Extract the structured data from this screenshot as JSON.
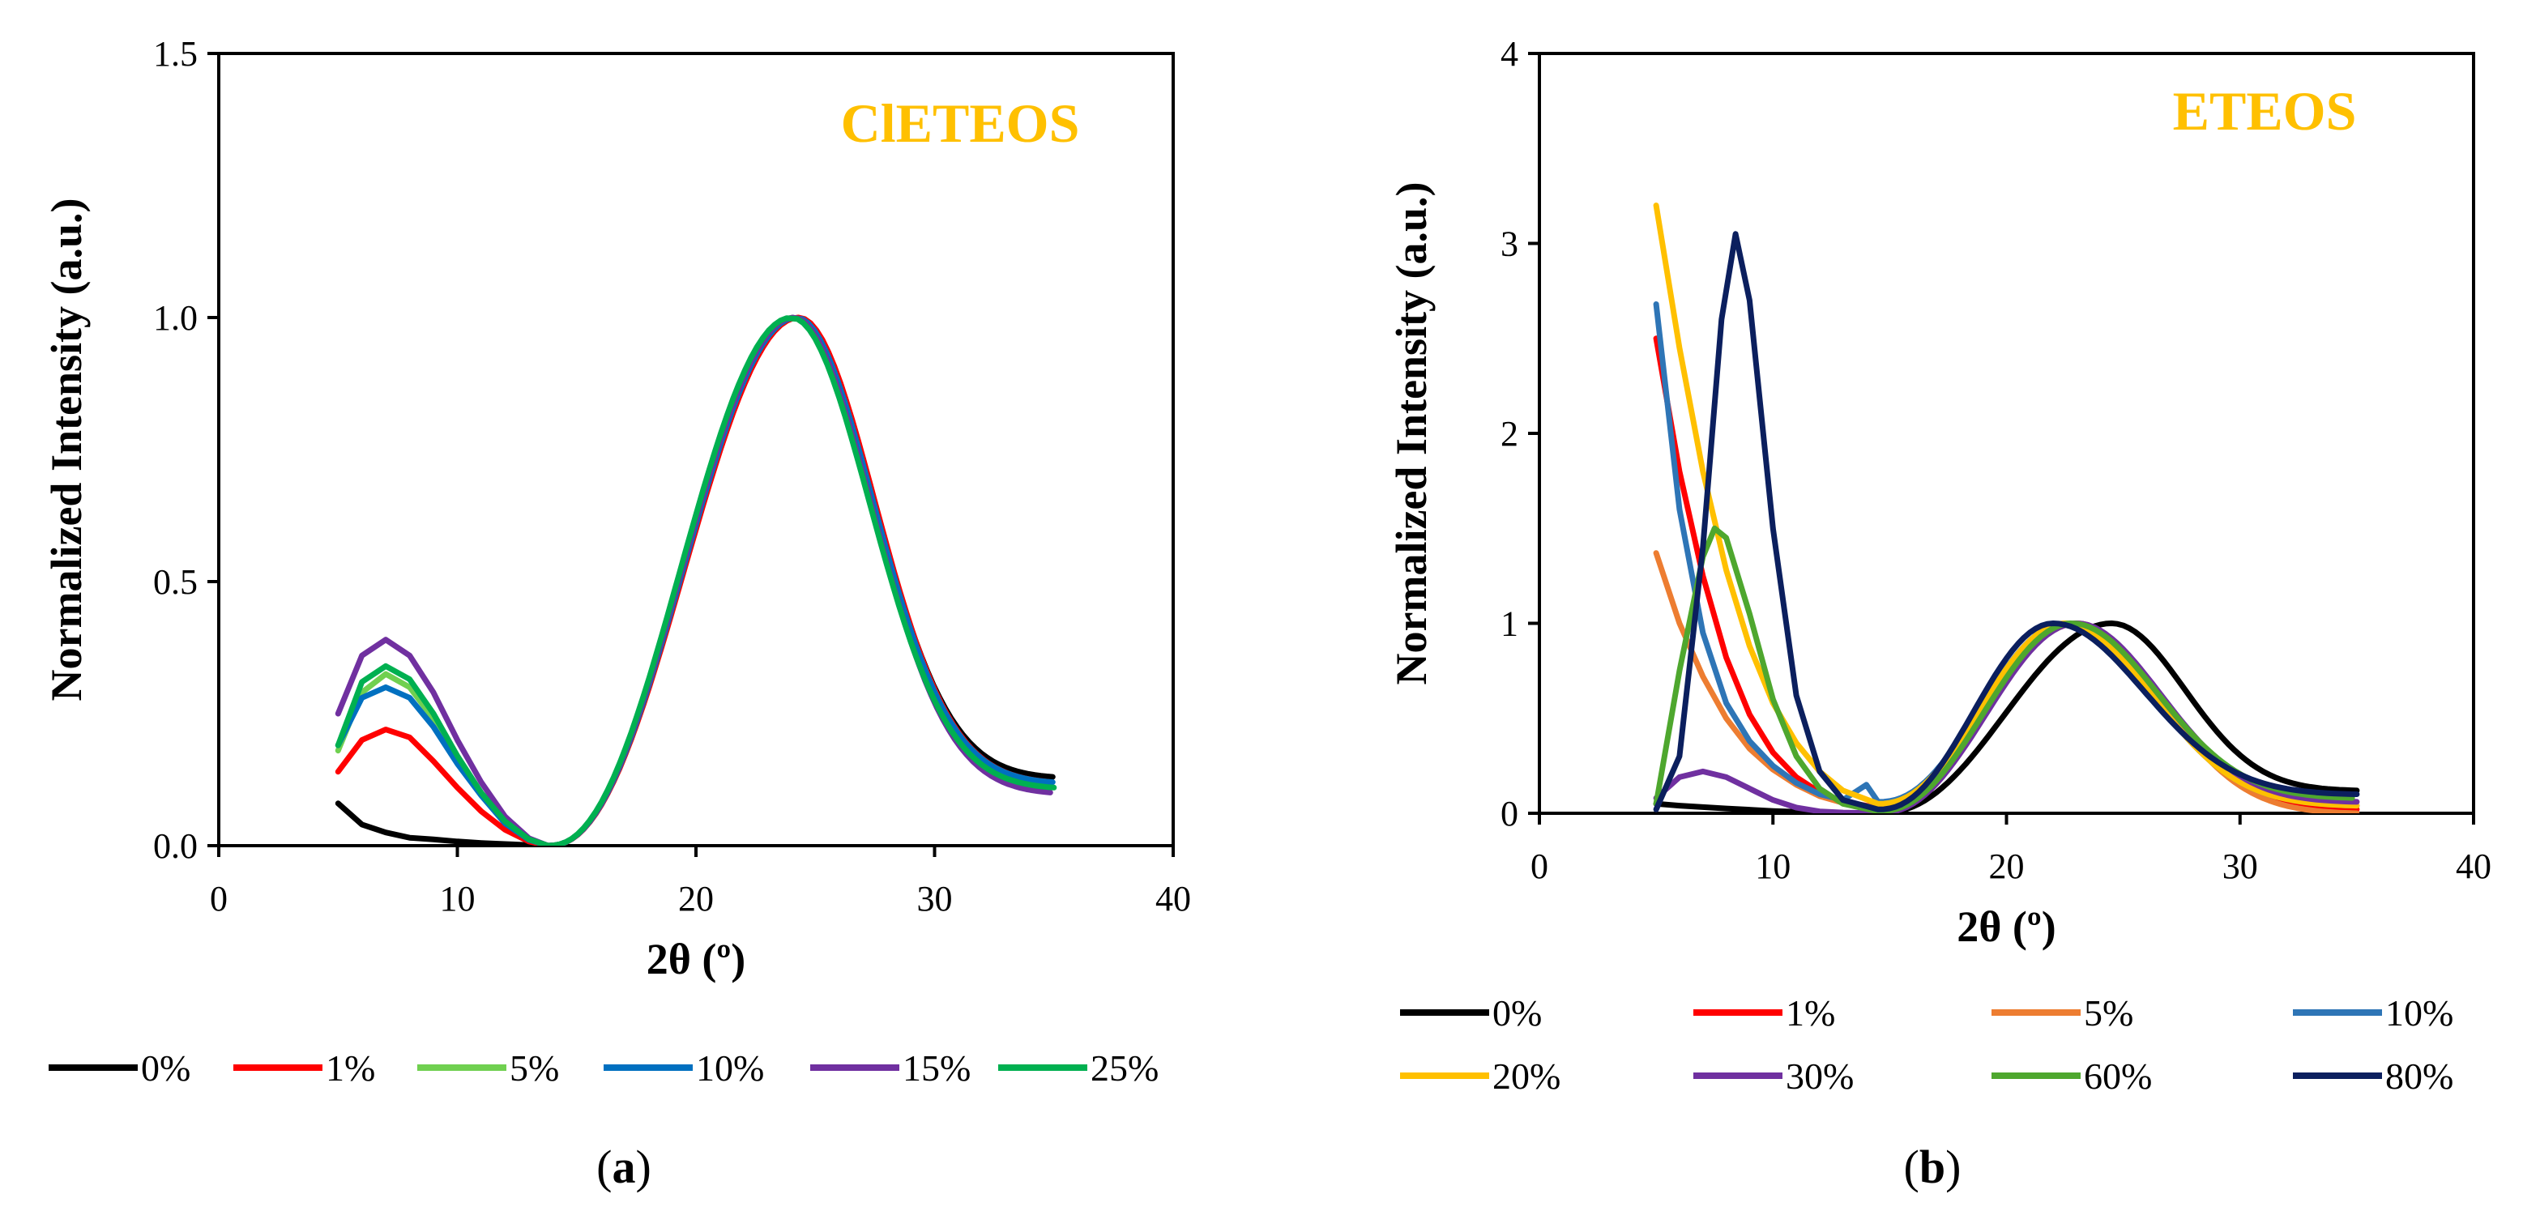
{
  "chart_data": [
    {
      "type": "line",
      "panel_label": {
        "open": "(",
        "letter": "a",
        "close": ")"
      },
      "annotation": {
        "text": "ClETEOS",
        "color": "#FFC000"
      },
      "xlabel": "2θ (º)",
      "ylabel": "Normalized Intensity (a.u.)",
      "xlim": [
        0,
        40
      ],
      "ylim": [
        0,
        1.5
      ],
      "xticks": [
        0,
        10,
        20,
        30,
        40
      ],
      "yticks": [
        0.0,
        0.5,
        1.0,
        1.5
      ],
      "yticklabels": [
        "0.0",
        "0.5",
        "1.0",
        "1.5"
      ],
      "series": [
        {
          "name": "0%",
          "color": "#000000",
          "peak_x": 24.2,
          "peak_y": 1.0,
          "min_x": 13.8,
          "low": [
            [
              5,
              0.08
            ],
            [
              6,
              0.04
            ],
            [
              7,
              0.025
            ],
            [
              8,
              0.015
            ],
            [
              9,
              0.012
            ],
            [
              10,
              0.008
            ],
            [
              11,
              0.005
            ],
            [
              12,
              0.003
            ],
            [
              13,
              0.001
            ],
            [
              13.8,
              0.0
            ]
          ],
          "end_y": 0.13
        },
        {
          "name": "1%",
          "color": "#FF0000",
          "peak_x": 24.3,
          "peak_y": 1.0,
          "min_x": 13.8,
          "low": [
            [
              5,
              0.14
            ],
            [
              6,
              0.2
            ],
            [
              7,
              0.22
            ],
            [
              8,
              0.205
            ],
            [
              9,
              0.16
            ],
            [
              10,
              0.11
            ],
            [
              11,
              0.065
            ],
            [
              12,
              0.03
            ],
            [
              13,
              0.008
            ],
            [
              13.8,
              0.0
            ]
          ],
          "end_y": 0.12
        },
        {
          "name": "5%",
          "color": "#70D050",
          "peak_x": 24.1,
          "peak_y": 1.0,
          "min_x": 13.8,
          "low": [
            [
              5,
              0.18
            ],
            [
              6,
              0.29
            ],
            [
              7,
              0.325
            ],
            [
              8,
              0.3
            ],
            [
              9,
              0.24
            ],
            [
              10,
              0.165
            ],
            [
              11,
              0.1
            ],
            [
              12,
              0.045
            ],
            [
              13,
              0.012
            ],
            [
              13.8,
              0.0
            ]
          ],
          "end_y": 0.11
        },
        {
          "name": "10%",
          "color": "#0070C0",
          "peak_x": 24.2,
          "peak_y": 1.0,
          "min_x": 13.8,
          "low": [
            [
              5,
              0.19
            ],
            [
              6,
              0.28
            ],
            [
              7,
              0.3
            ],
            [
              8,
              0.28
            ],
            [
              9,
              0.225
            ],
            [
              10,
              0.155
            ],
            [
              11,
              0.095
            ],
            [
              12,
              0.042
            ],
            [
              13,
              0.011
            ],
            [
              13.8,
              0.0
            ]
          ],
          "end_y": 0.12
        },
        {
          "name": "15%",
          "color": "#7030A0",
          "peak_x": 24.1,
          "peak_y": 1.0,
          "min_x": 13.8,
          "low": [
            [
              5,
              0.25
            ],
            [
              6,
              0.36
            ],
            [
              7,
              0.39
            ],
            [
              8,
              0.36
            ],
            [
              9,
              0.29
            ],
            [
              10,
              0.2
            ],
            [
              11,
              0.12
            ],
            [
              12,
              0.055
            ],
            [
              13,
              0.014
            ],
            [
              13.8,
              0.0
            ]
          ],
          "end_y": 0.1
        },
        {
          "name": "25%",
          "color": "#00B050",
          "peak_x": 24.0,
          "peak_y": 1.0,
          "min_x": 13.8,
          "low": [
            [
              5,
              0.19
            ],
            [
              6,
              0.31
            ],
            [
              7,
              0.34
            ],
            [
              8,
              0.315
            ],
            [
              9,
              0.25
            ],
            [
              10,
              0.17
            ],
            [
              11,
              0.1
            ],
            [
              12,
              0.046
            ],
            [
              13,
              0.012
            ],
            [
              13.8,
              0.0
            ]
          ],
          "end_y": 0.11
        }
      ]
    },
    {
      "type": "line",
      "panel_label": {
        "open": "(",
        "letter": "b",
        "close": ")"
      },
      "annotation": {
        "text": "ETEOS",
        "color": "#FFC000"
      },
      "xlabel": "2θ (º)",
      "ylabel": "Normalized Intensity (a.u.)",
      "xlim": [
        0,
        40
      ],
      "ylim": [
        0,
        4
      ],
      "xticks": [
        0,
        10,
        20,
        30,
        40
      ],
      "yticks": [
        0,
        1,
        2,
        3,
        4
      ],
      "yticklabels": [
        "0",
        "1",
        "2",
        "3",
        "4"
      ],
      "series": [
        {
          "name": "0%",
          "color": "#000000",
          "peak_x": 24.5,
          "peak_y": 1.0,
          "min_x": 14.5,
          "low": [
            [
              5,
              0.05
            ],
            [
              6,
              0.04
            ],
            [
              8,
              0.025
            ],
            [
              10,
              0.012
            ],
            [
              12,
              0.004
            ],
            [
              14.5,
              0.0
            ]
          ],
          "end_y": 0.12
        },
        {
          "name": "1%",
          "color": "#FF0000",
          "peak_x": 23.0,
          "peak_y": 1.0,
          "min_x": 14.5,
          "low": [
            [
              5,
              2.5
            ],
            [
              6,
              1.8
            ],
            [
              7,
              1.25
            ],
            [
              8,
              0.82
            ],
            [
              9,
              0.52
            ],
            [
              10,
              0.32
            ],
            [
              11,
              0.19
            ],
            [
              12,
              0.11
            ],
            [
              13,
              0.06
            ],
            [
              14.5,
              0.03
            ]
          ],
          "end_y": 0.02
        },
        {
          "name": "5%",
          "color": "#ED7D31",
          "peak_x": 23.0,
          "peak_y": 1.0,
          "min_x": 14.5,
          "low": [
            [
              5,
              1.37
            ],
            [
              6,
              1.0
            ],
            [
              7,
              0.72
            ],
            [
              8,
              0.5
            ],
            [
              9,
              0.34
            ],
            [
              10,
              0.23
            ],
            [
              11,
              0.15
            ],
            [
              12,
              0.09
            ],
            [
              13,
              0.055
            ],
            [
              14.5,
              0.03
            ]
          ],
          "end_y": 0.0
        },
        {
          "name": "10%",
          "color": "#2E75B6",
          "peak_x": 22.5,
          "peak_y": 1.0,
          "min_x": 14.5,
          "low": [
            [
              5,
              2.68
            ],
            [
              6,
              1.6
            ],
            [
              7,
              0.95
            ],
            [
              8,
              0.58
            ],
            [
              9,
              0.38
            ],
            [
              10,
              0.25
            ],
            [
              11,
              0.16
            ],
            [
              12,
              0.1
            ],
            [
              13,
              0.07
            ],
            [
              14,
              0.15
            ],
            [
              14.5,
              0.06
            ]
          ],
          "end_y": 0.04
        },
        {
          "name": "20%",
          "color": "#FFC000",
          "peak_x": 22.5,
          "peak_y": 1.0,
          "min_x": 14.5,
          "low": [
            [
              5,
              3.2
            ],
            [
              6,
              2.45
            ],
            [
              7,
              1.8
            ],
            [
              8,
              1.28
            ],
            [
              9,
              0.88
            ],
            [
              10,
              0.58
            ],
            [
              11,
              0.37
            ],
            [
              12,
              0.22
            ],
            [
              13,
              0.12
            ],
            [
              14.5,
              0.05
            ]
          ],
          "end_y": 0.04
        },
        {
          "name": "30%",
          "color": "#7030A0",
          "peak_x": 23.0,
          "peak_y": 1.0,
          "min_x": 14.5,
          "low": [
            [
              5,
              0.08
            ],
            [
              6,
              0.19
            ],
            [
              7,
              0.22
            ],
            [
              8,
              0.19
            ],
            [
              9,
              0.13
            ],
            [
              10,
              0.07
            ],
            [
              11,
              0.03
            ],
            [
              12,
              0.01
            ],
            [
              13,
              0.004
            ],
            [
              14.5,
              0.0
            ]
          ],
          "end_y": 0.06
        },
        {
          "name": "60%",
          "color": "#4EA72E",
          "peak_x": 22.8,
          "peak_y": 1.0,
          "min_x": 14.5,
          "low": [
            [
              5,
              0.05
            ],
            [
              6,
              0.75
            ],
            [
              7,
              1.35
            ],
            [
              7.5,
              1.5
            ],
            [
              8,
              1.45
            ],
            [
              9,
              1.05
            ],
            [
              10,
              0.6
            ],
            [
              11,
              0.3
            ],
            [
              12,
              0.13
            ],
            [
              13,
              0.05
            ],
            [
              14.5,
              0.01
            ]
          ],
          "end_y": 0.08
        },
        {
          "name": "80%",
          "color": "#0B1F5E",
          "peak_x": 22.0,
          "peak_y": 1.0,
          "min_x": 14.5,
          "low": [
            [
              5,
              0.02
            ],
            [
              6,
              0.3
            ],
            [
              7,
              1.4
            ],
            [
              7.8,
              2.6
            ],
            [
              8.4,
              3.05
            ],
            [
              9,
              2.7
            ],
            [
              10,
              1.5
            ],
            [
              11,
              0.62
            ],
            [
              12,
              0.22
            ],
            [
              13,
              0.07
            ],
            [
              14.5,
              0.02
            ]
          ],
          "end_y": 0.1
        }
      ]
    }
  ]
}
